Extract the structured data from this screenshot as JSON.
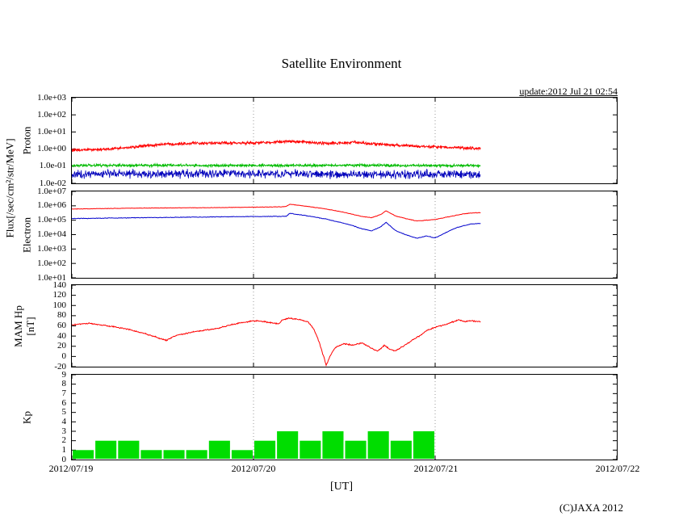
{
  "title": "Satellite Environment",
  "update_label": "update:2012 Jul 21 02:54",
  "copyright": "(C)JAXA 2012",
  "xaxis": {
    "label": "[UT]",
    "tick_labels": [
      "2012/07/19",
      "2012/07/20",
      "2012/07/21",
      "2012/07/22"
    ],
    "span_days": 3,
    "grid_days": [
      1,
      2
    ]
  },
  "left_labels": {
    "flux": "Flux[/sec/cm²/str/MeV]",
    "proton": "Proton",
    "electron": "Electron",
    "hp_line1": "MAM Hp",
    "hp_line2": "[nT]",
    "kp": "Kp"
  },
  "chart_data": {
    "type": "line",
    "title": "Satellite Environment",
    "x_axis": "time in days since 2012/07/19 00:00 UT",
    "x_range": [
      0,
      3
    ],
    "panels": [
      {
        "id": "proton",
        "ylabel": "Proton",
        "scale": "log",
        "ylim_exp": [
          -2,
          3
        ],
        "yticks": [
          {
            "v": 1000,
            "label": "1.0e+03"
          },
          {
            "v": 100,
            "label": "1.0e+02"
          },
          {
            "v": 10,
            "label": "1.0e+01"
          },
          {
            "v": 1,
            "label": "1.0e+00"
          },
          {
            "v": 0.1,
            "label": "1.0e-01"
          },
          {
            "v": 0.01,
            "label": "1.0e-02"
          }
        ],
        "series": [
          {
            "name": "proton-flux-red",
            "color": "#ff0000",
            "width": 1,
            "noise": 0.1,
            "step": 0.002,
            "points": [
              [
                0,
                0.85
              ],
              [
                0.1,
                0.92
              ],
              [
                0.2,
                1.0
              ],
              [
                0.3,
                1.2
              ],
              [
                0.4,
                1.55
              ],
              [
                0.5,
                1.9
              ],
              [
                0.6,
                2.1
              ],
              [
                0.7,
                2.3
              ],
              [
                0.8,
                2.25
              ],
              [
                0.9,
                2.2
              ],
              [
                1.0,
                2.3
              ],
              [
                1.1,
                2.55
              ],
              [
                1.2,
                2.8
              ],
              [
                1.3,
                2.45
              ],
              [
                1.4,
                2.2
              ],
              [
                1.5,
                2.3
              ],
              [
                1.55,
                2.45
              ],
              [
                1.65,
                2.05
              ],
              [
                1.75,
                1.75
              ],
              [
                1.85,
                1.55
              ],
              [
                1.95,
                1.4
              ],
              [
                2.05,
                1.28
              ],
              [
                2.15,
                1.18
              ],
              [
                2.25,
                1.08
              ]
            ]
          },
          {
            "name": "proton-flux-green",
            "color": "#00bb00",
            "width": 1,
            "noise": 0.09,
            "step": 0.002,
            "points": [
              [
                0,
                0.11
              ],
              [
                0.5,
                0.113
              ],
              [
                1.0,
                0.11
              ],
              [
                1.5,
                0.112
              ],
              [
                2.0,
                0.108
              ],
              [
                2.25,
                0.11
              ]
            ]
          },
          {
            "name": "proton-flux-blue",
            "color": "#0000bb",
            "width": 0.8,
            "noise": 0.3,
            "step": 0.002,
            "points": [
              [
                0,
                0.033
              ],
              [
                0.4,
                0.035
              ],
              [
                0.8,
                0.037
              ],
              [
                1.2,
                0.036
              ],
              [
                1.6,
                0.033
              ],
              [
                2.0,
                0.034
              ],
              [
                2.25,
                0.032
              ]
            ]
          }
        ]
      },
      {
        "id": "electron",
        "ylabel": "Electron",
        "scale": "log",
        "ylim_exp": [
          1,
          7
        ],
        "yticks": [
          {
            "v": 10000000.0,
            "label": "1.0e+07"
          },
          {
            "v": 1000000.0,
            "label": "1.0e+06"
          },
          {
            "v": 100000.0,
            "label": "1.0e+05"
          },
          {
            "v": 10000.0,
            "label": "1.0e+04"
          },
          {
            "v": 1000.0,
            "label": "1.0e+03"
          },
          {
            "v": 100.0,
            "label": "1.0e+02"
          },
          {
            "v": 10.0,
            "label": "1.0e+01"
          }
        ],
        "series": [
          {
            "name": "electron-flux-red",
            "color": "#ff0000",
            "width": 1,
            "noise": 0.02,
            "step": 0.004,
            "points": [
              [
                0,
                600000.0
              ],
              [
                0.2,
                650000.0
              ],
              [
                0.4,
                700000.0
              ],
              [
                0.6,
                720000.0
              ],
              [
                0.8,
                750000.0
              ],
              [
                1.0,
                800000.0
              ],
              [
                1.15,
                850000.0
              ],
              [
                1.18,
                900000.0
              ],
              [
                1.2,
                1300000.0
              ],
              [
                1.3,
                900000.0
              ],
              [
                1.4,
                600000.0
              ],
              [
                1.5,
                350000.0
              ],
              [
                1.6,
                180000.0
              ],
              [
                1.65,
                150000.0
              ],
              [
                1.7,
                250000.0
              ],
              [
                1.73,
                450000.0
              ],
              [
                1.78,
                200000.0
              ],
              [
                1.85,
                120000.0
              ],
              [
                1.9,
                90000.0
              ],
              [
                1.95,
                100000.0
              ],
              [
                2.0,
                110000.0
              ],
              [
                2.05,
                150000.0
              ],
              [
                2.1,
                200000.0
              ],
              [
                2.15,
                270000.0
              ],
              [
                2.2,
                320000.0
              ],
              [
                2.25,
                330000.0
              ]
            ]
          },
          {
            "name": "electron-flux-blue",
            "color": "#0000cc",
            "width": 1,
            "noise": 0.025,
            "step": 0.004,
            "points": [
              [
                0,
                130000.0
              ],
              [
                0.2,
                140000.0
              ],
              [
                0.4,
                150000.0
              ],
              [
                0.6,
                160000.0
              ],
              [
                0.8,
                170000.0
              ],
              [
                1.0,
                180000.0
              ],
              [
                1.15,
                185000.0
              ],
              [
                1.18,
                190000.0
              ],
              [
                1.2,
                300000.0
              ],
              [
                1.3,
                200000.0
              ],
              [
                1.4,
                120000.0
              ],
              [
                1.5,
                60000.0
              ],
              [
                1.55,
                40000.0
              ],
              [
                1.6,
                25000.0
              ],
              [
                1.65,
                18000.0
              ],
              [
                1.7,
                35000.0
              ],
              [
                1.73,
                70000.0
              ],
              [
                1.78,
                20000.0
              ],
              [
                1.82,
                12000.0
              ],
              [
                1.86,
                8000.0
              ],
              [
                1.9,
                5500.0
              ],
              [
                1.95,
                8000.0
              ],
              [
                2.0,
                6000.0
              ],
              [
                2.05,
                12000.0
              ],
              [
                2.1,
                25000.0
              ],
              [
                2.15,
                40000.0
              ],
              [
                2.2,
                55000.0
              ],
              [
                2.25,
                60000.0
              ]
            ]
          }
        ]
      },
      {
        "id": "hp",
        "ylabel": "MAM Hp [nT]",
        "scale": "linear",
        "ylim": [
          -20,
          140
        ],
        "yticks": [
          {
            "v": 140,
            "label": "140"
          },
          {
            "v": 120,
            "label": "120"
          },
          {
            "v": 100,
            "label": "100"
          },
          {
            "v": 80,
            "label": "80"
          },
          {
            "v": 60,
            "label": "60"
          },
          {
            "v": 40,
            "label": "40"
          },
          {
            "v": 20,
            "label": "20"
          },
          {
            "v": 0,
            "label": "0"
          },
          {
            "v": -20,
            "label": "-20"
          }
        ],
        "series": [
          {
            "name": "mam-hp-red",
            "color": "#ff0000",
            "width": 1,
            "noise": 1.5,
            "step": 0.003,
            "points": [
              [
                0,
                62
              ],
              [
                0.05,
                64
              ],
              [
                0.1,
                65
              ],
              [
                0.2,
                60
              ],
              [
                0.3,
                54
              ],
              [
                0.4,
                45
              ],
              [
                0.5,
                34
              ],
              [
                0.52,
                32
              ],
              [
                0.58,
                42
              ],
              [
                0.65,
                47
              ],
              [
                0.72,
                51
              ],
              [
                0.8,
                55
              ],
              [
                0.9,
                64
              ],
              [
                1.0,
                70
              ],
              [
                1.05,
                69
              ],
              [
                1.1,
                66
              ],
              [
                1.14,
                64
              ],
              [
                1.16,
                72
              ],
              [
                1.2,
                75
              ],
              [
                1.25,
                73
              ],
              [
                1.3,
                68
              ],
              [
                1.33,
                55
              ],
              [
                1.36,
                30
              ],
              [
                1.39,
                -5
              ],
              [
                1.4,
                -18
              ],
              [
                1.42,
                0
              ],
              [
                1.45,
                18
              ],
              [
                1.5,
                25
              ],
              [
                1.55,
                22
              ],
              [
                1.6,
                27
              ],
              [
                1.64,
                18
              ],
              [
                1.68,
                11
              ],
              [
                1.7,
                15
              ],
              [
                1.72,
                22
              ],
              [
                1.75,
                14
              ],
              [
                1.78,
                11
              ],
              [
                1.8,
                15
              ],
              [
                1.84,
                24
              ],
              [
                1.88,
                33
              ],
              [
                1.92,
                42
              ],
              [
                1.96,
                52
              ],
              [
                2.0,
                57
              ],
              [
                2.05,
                62
              ],
              [
                2.1,
                68
              ],
              [
                2.13,
                72
              ],
              [
                2.16,
                68
              ],
              [
                2.2,
                70
              ],
              [
                2.25,
                68
              ]
            ]
          }
        ]
      },
      {
        "id": "kp",
        "ylabel": "Kp",
        "scale": "linear",
        "ylim": [
          0,
          9
        ],
        "yticks": [
          {
            "v": 9,
            "label": "9"
          },
          {
            "v": 8,
            "label": "8"
          },
          {
            "v": 7,
            "label": "7"
          },
          {
            "v": 6,
            "label": "6"
          },
          {
            "v": 5,
            "label": "5"
          },
          {
            "v": 4,
            "label": "4"
          },
          {
            "v": 3,
            "label": "3"
          },
          {
            "v": 2,
            "label": "2"
          },
          {
            "v": 1,
            "label": "1"
          },
          {
            "v": 0,
            "label": "0"
          }
        ],
        "bars": {
          "name": "kp-index-bars",
          "color": "#00dd00",
          "bar_hours": 3,
          "values": [
            1,
            2,
            2,
            1,
            1,
            1,
            2,
            1,
            2,
            3,
            2,
            3,
            2,
            3,
            2,
            3
          ]
        }
      }
    ]
  }
}
